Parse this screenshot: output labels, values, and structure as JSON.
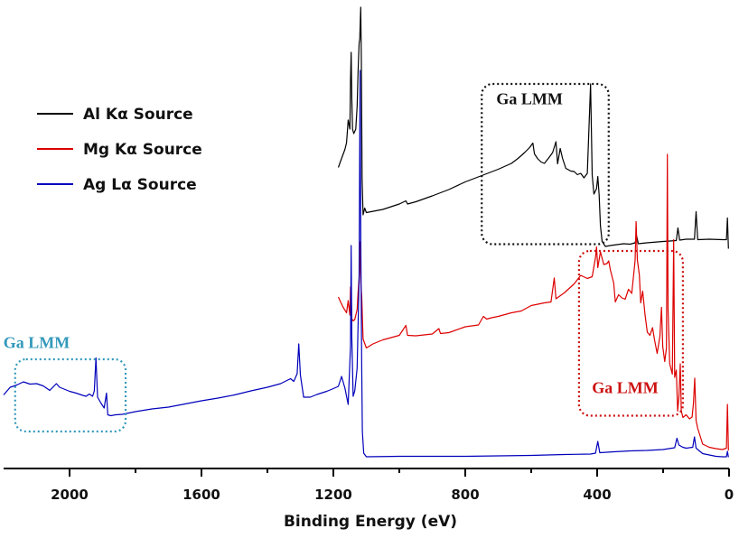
{
  "chart_data": {
    "type": "line",
    "xlabel": "Binding Energy (eV)",
    "ylabel": "",
    "xlim": [
      2200,
      0
    ],
    "x_reversed": true,
    "ylim": [
      0,
      100
    ],
    "y_ticks_shown": false,
    "x_ticks": [
      2000,
      1600,
      1200,
      800,
      400,
      0
    ],
    "x_tick_labels": [
      "2000",
      "1600",
      "1200",
      "800",
      "400",
      "0"
    ],
    "grid": false,
    "legend_position": "top-left",
    "series": [
      {
        "name": "Al Kα Source",
        "color": "#000000",
        "points": [
          [
            1185,
            64.5
          ],
          [
            1175,
            66.5
          ],
          [
            1165,
            68.5
          ],
          [
            1160,
            70
          ],
          [
            1155,
            75
          ],
          [
            1150,
            73
          ],
          [
            1148,
            84
          ],
          [
            1146,
            90
          ],
          [
            1144,
            80
          ],
          [
            1142,
            73
          ],
          [
            1138,
            72
          ],
          [
            1132,
            73
          ],
          [
            1128,
            78
          ],
          [
            1125,
            86
          ],
          [
            1122,
            92
          ],
          [
            1120,
            93
          ],
          [
            1117,
            100
          ],
          [
            1115,
            88
          ],
          [
            1113,
            62
          ],
          [
            1110,
            54
          ],
          [
            1105,
            55.5
          ],
          [
            1100,
            54.5
          ],
          [
            1050,
            55.2
          ],
          [
            1000,
            56.4
          ],
          [
            980,
            57.1
          ],
          [
            975,
            56.4
          ],
          [
            950,
            56.9
          ],
          [
            900,
            58.2
          ],
          [
            850,
            59.6
          ],
          [
            800,
            61.3
          ],
          [
            750,
            62.7
          ],
          [
            700,
            64.1
          ],
          [
            660,
            65.4
          ],
          [
            640,
            66.5
          ],
          [
            620,
            67.8
          ],
          [
            605,
            68.9
          ],
          [
            595,
            69.9
          ],
          [
            590,
            67.5
          ],
          [
            580,
            66.4
          ],
          [
            570,
            65.7
          ],
          [
            560,
            65.4
          ],
          [
            545,
            66.8
          ],
          [
            535,
            67.8
          ],
          [
            525,
            70.2
          ],
          [
            520,
            65.3
          ],
          [
            512,
            68.7
          ],
          [
            505,
            66.5
          ],
          [
            495,
            64.3
          ],
          [
            480,
            63.7
          ],
          [
            470,
            63.6
          ],
          [
            460,
            62.9
          ],
          [
            450,
            63.2
          ],
          [
            440,
            62.2
          ],
          [
            430,
            63.2
          ],
          [
            420,
            83
          ],
          [
            415,
            62.8
          ],
          [
            410,
            58.6
          ],
          [
            402,
            59.8
          ],
          [
            398,
            62.5
          ],
          [
            394,
            58.4
          ],
          [
            390,
            51.6
          ],
          [
            385,
            48.1
          ],
          [
            375,
            47
          ],
          [
            360,
            47.2
          ],
          [
            340,
            47.4
          ],
          [
            320,
            47.6
          ],
          [
            300,
            47.5
          ],
          [
            285,
            47.8
          ],
          [
            280,
            49.2
          ],
          [
            275,
            47.6
          ],
          [
            250,
            47.8
          ],
          [
            200,
            48.1
          ],
          [
            160,
            48.3
          ],
          [
            155,
            51.1
          ],
          [
            150,
            48.4
          ],
          [
            130,
            48.6
          ],
          [
            105,
            48.6
          ],
          [
            100,
            54.7
          ],
          [
            95,
            48.5
          ],
          [
            60,
            48.6
          ],
          [
            20,
            48.5
          ],
          [
            8,
            48.5
          ],
          [
            5,
            53.3
          ],
          [
            2,
            46.5
          ]
        ]
      },
      {
        "name": "Mg Kα Source",
        "color": "#dd0000",
        "points": [
          [
            1185,
            35.8
          ],
          [
            1180,
            35
          ],
          [
            1170,
            33.5
          ],
          [
            1160,
            32.3
          ],
          [
            1155,
            35
          ],
          [
            1150,
            31.8
          ],
          [
            1148,
            38
          ],
          [
            1146,
            36
          ],
          [
            1144,
            31
          ],
          [
            1140,
            30.5
          ],
          [
            1135,
            30.8
          ],
          [
            1128,
            33
          ],
          [
            1125,
            37
          ],
          [
            1122,
            40
          ],
          [
            1119,
            48
          ],
          [
            1117,
            39
          ],
          [
            1114,
            36
          ],
          [
            1110,
            26.5
          ],
          [
            1100,
            24.5
          ],
          [
            1080,
            25.4
          ],
          [
            1050,
            26.3
          ],
          [
            1000,
            27.3
          ],
          [
            980,
            29.5
          ],
          [
            975,
            27.3
          ],
          [
            950,
            27.2
          ],
          [
            900,
            27.6
          ],
          [
            880,
            28.8
          ],
          [
            875,
            27.7
          ],
          [
            850,
            27.9
          ],
          [
            800,
            29.2
          ],
          [
            760,
            29.6
          ],
          [
            745,
            31.5
          ],
          [
            735,
            30.9
          ],
          [
            720,
            31.2
          ],
          [
            700,
            31.5
          ],
          [
            660,
            32.3
          ],
          [
            630,
            32.7
          ],
          [
            600,
            33.9
          ],
          [
            560,
            34.5
          ],
          [
            540,
            34.7
          ],
          [
            530,
            40
          ],
          [
            525,
            35.4
          ],
          [
            500,
            36.7
          ],
          [
            470,
            38.7
          ],
          [
            450,
            40.6
          ],
          [
            430,
            39.9
          ],
          [
            415,
            40.3
          ],
          [
            405,
            44.6
          ],
          [
            402,
            46.9
          ],
          [
            398,
            42.3
          ],
          [
            390,
            45.8
          ],
          [
            380,
            43
          ],
          [
            370,
            43.2
          ],
          [
            365,
            43.8
          ],
          [
            360,
            41.8
          ],
          [
            350,
            38.9
          ],
          [
            345,
            34.7
          ],
          [
            335,
            36.3
          ],
          [
            325,
            35.6
          ],
          [
            315,
            35.3
          ],
          [
            305,
            37.5
          ],
          [
            295,
            36.6
          ],
          [
            285,
            43.9
          ],
          [
            282,
            52.5
          ],
          [
            278,
            44
          ],
          [
            272,
            40.7
          ],
          [
            268,
            34.5
          ],
          [
            262,
            37.1
          ],
          [
            255,
            32
          ],
          [
            248,
            28
          ],
          [
            240,
            27.3
          ],
          [
            232,
            29
          ],
          [
            226,
            26.3
          ],
          [
            218,
            23.3
          ],
          [
            210,
            27
          ],
          [
            205,
            33.5
          ],
          [
            201,
            24.8
          ],
          [
            195,
            21.5
          ],
          [
            190,
            24.5
          ],
          [
            187,
            67.4
          ],
          [
            185,
            33
          ],
          [
            180,
            21
          ],
          [
            172,
            18.7
          ],
          [
            168,
            48.5
          ],
          [
            165,
            18
          ],
          [
            160,
            19.6
          ],
          [
            156,
            10.5
          ],
          [
            152,
            13.6
          ],
          [
            148,
            21
          ],
          [
            145,
            10.6
          ],
          [
            140,
            9.1
          ],
          [
            130,
            9.7
          ],
          [
            120,
            8.8
          ],
          [
            112,
            9.2
          ],
          [
            108,
            12.3
          ],
          [
            104,
            17.8
          ],
          [
            100,
            8.4
          ],
          [
            95,
            6.7
          ],
          [
            80,
            3.2
          ],
          [
            60,
            2.5
          ],
          [
            40,
            2.2
          ],
          [
            20,
            2
          ],
          [
            8,
            2.3
          ],
          [
            5,
            12
          ],
          [
            2,
            1.8
          ]
        ]
      },
      {
        "name": "Ag Lα Source",
        "color": "#0000bb",
        "points": [
          [
            2200,
            14.1
          ],
          [
            2180,
            15.8
          ],
          [
            2160,
            16.3
          ],
          [
            2140,
            17
          ],
          [
            2120,
            16.5
          ],
          [
            2100,
            16.6
          ],
          [
            2080,
            16.1
          ],
          [
            2060,
            15.1
          ],
          [
            2040,
            16.6
          ],
          [
            2030,
            15.8
          ],
          [
            2020,
            15.5
          ],
          [
            2000,
            14.9
          ],
          [
            1980,
            14.5
          ],
          [
            1960,
            14
          ],
          [
            1950,
            13.8
          ],
          [
            1940,
            14.3
          ],
          [
            1930,
            13.8
          ],
          [
            1925,
            15
          ],
          [
            1920,
            22.3
          ],
          [
            1915,
            13.6
          ],
          [
            1905,
            12.3
          ],
          [
            1895,
            11.2
          ],
          [
            1888,
            14.5
          ],
          [
            1884,
            9.7
          ],
          [
            1875,
            9.5
          ],
          [
            1860,
            9.7
          ],
          [
            1840,
            9.8
          ],
          [
            1800,
            10.4
          ],
          [
            1750,
            11
          ],
          [
            1700,
            11.4
          ],
          [
            1650,
            12.1
          ],
          [
            1600,
            12.8
          ],
          [
            1550,
            13.4
          ],
          [
            1500,
            14.1
          ],
          [
            1450,
            15
          ],
          [
            1400,
            15.8
          ],
          [
            1360,
            16.6
          ],
          [
            1330,
            17.7
          ],
          [
            1320,
            17.1
          ],
          [
            1310,
            18.8
          ],
          [
            1305,
            25.4
          ],
          [
            1300,
            18.5
          ],
          [
            1290,
            13.6
          ],
          [
            1270,
            13.6
          ],
          [
            1250,
            14.2
          ],
          [
            1220,
            14.9
          ],
          [
            1200,
            15.5
          ],
          [
            1185,
            16
          ],
          [
            1175,
            18.2
          ],
          [
            1165,
            15.6
          ],
          [
            1155,
            12
          ],
          [
            1148,
            25
          ],
          [
            1146,
            47.2
          ],
          [
            1144,
            27
          ],
          [
            1140,
            13.8
          ],
          [
            1135,
            15
          ],
          [
            1128,
            20
          ],
          [
            1125,
            30
          ],
          [
            1122,
            40
          ],
          [
            1119,
            86
          ],
          [
            1117,
            50
          ],
          [
            1114,
            20
          ],
          [
            1112,
            6
          ],
          [
            1108,
            1.2
          ],
          [
            1100,
            0.4
          ],
          [
            1000,
            0.5
          ],
          [
            800,
            0.5
          ],
          [
            600,
            0.7
          ],
          [
            500,
            0.9
          ],
          [
            420,
            1
          ],
          [
            405,
            1.2
          ],
          [
            398,
            3.8
          ],
          [
            392,
            1.3
          ],
          [
            350,
            1.5
          ],
          [
            300,
            1.7
          ],
          [
            250,
            1.8
          ],
          [
            200,
            2
          ],
          [
            165,
            2.4
          ],
          [
            158,
            4.5
          ],
          [
            152,
            3
          ],
          [
            140,
            2.5
          ],
          [
            130,
            2.3
          ],
          [
            110,
            2.5
          ],
          [
            105,
            4.8
          ],
          [
            100,
            2.3
          ],
          [
            80,
            1.1
          ],
          [
            60,
            0.8
          ],
          [
            40,
            0.5
          ],
          [
            20,
            0.4
          ],
          [
            8,
            0.4
          ],
          [
            5,
            1.6
          ],
          [
            2,
            0.3
          ]
        ]
      }
    ],
    "annotations": [
      {
        "text": "Ga LMM",
        "color": "#111111",
        "box_color": "#111111",
        "box_x": [
          750,
          365
        ],
        "box_y": [
          47.5,
          83
        ],
        "label_x": 605,
        "label_y": 78.5
      },
      {
        "text": "Ga LMM",
        "color": "#cc1111",
        "box_color": "#cc1111",
        "box_x": [
          455,
          140
        ],
        "box_y": [
          9.5,
          46
        ],
        "label_x": 315,
        "label_y": 14.5
      },
      {
        "text": "Ga LMM",
        "color": "#3399bb",
        "box_color": "#3399bb",
        "box_x": [
          2165,
          1830
        ],
        "box_y": [
          6,
          22
        ],
        "label_x": 2100,
        "label_y": 24.5
      }
    ]
  }
}
